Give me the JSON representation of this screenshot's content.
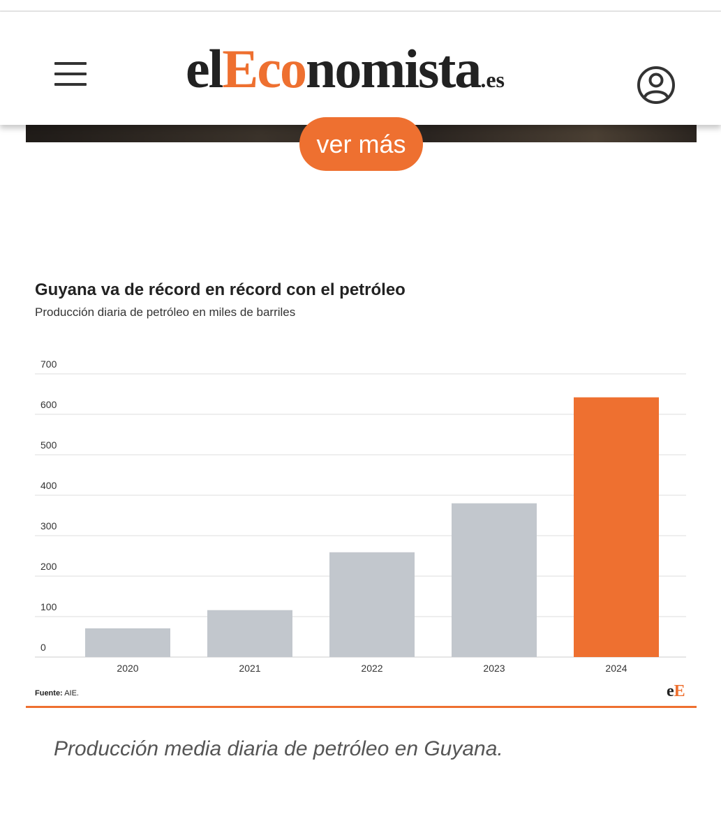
{
  "header": {
    "logo_parts": [
      "el",
      "Eco",
      "nomista",
      ".es"
    ],
    "menu_icon": "hamburger-menu-icon",
    "user_icon": "user-account-icon"
  },
  "ver_mas_label": "ver más",
  "figure": {
    "source_label": "Fuente:",
    "source_value": "AIE.",
    "brand_mark": [
      "e",
      "E"
    ],
    "caption": "Producción media diaria de petróleo en Guyana."
  },
  "colors": {
    "accent": "#ee7030",
    "bar": "#c2c7cd",
    "grid": "#dddddd"
  },
  "chart_data": {
    "type": "bar",
    "title": "Guyana va de récord en récord con el petróleo",
    "subtitle": "Producción diaria de petróleo en miles de barriles",
    "categories": [
      "2020",
      "2021",
      "2022",
      "2023",
      "2024"
    ],
    "values": [
      71,
      116,
      259,
      380,
      642
    ],
    "highlight_index": 4,
    "ylim": [
      0,
      700
    ],
    "yticks": [
      0,
      100,
      200,
      300,
      400,
      500,
      600,
      700
    ],
    "grid": true
  }
}
